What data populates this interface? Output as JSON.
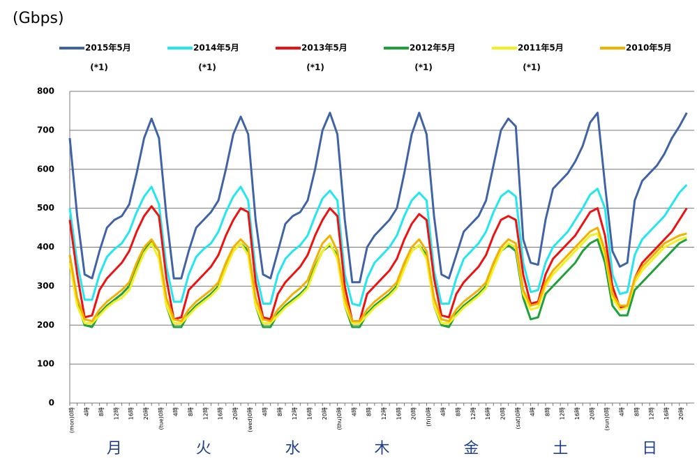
{
  "chart_data": {
    "type": "line",
    "y_label": "(Gbps)",
    "categories": [
      "(mon)0時",
      null,
      "4時",
      null,
      "8時",
      null,
      "12時",
      null,
      "16時",
      null,
      "20時",
      null,
      "(tue)0時",
      null,
      "4時",
      null,
      "8時",
      null,
      "12時",
      null,
      "16時",
      null,
      "20時",
      null,
      "(wed)0時",
      null,
      "4時",
      null,
      "8時",
      null,
      "12時",
      null,
      "16時",
      null,
      "20時",
      null,
      "(thu)0時",
      null,
      "4時",
      null,
      "8時",
      null,
      "12時",
      null,
      "16時",
      null,
      "20時",
      null,
      "(fri)0時",
      null,
      "4時",
      null,
      "8時",
      null,
      "12時",
      null,
      "16時",
      null,
      "20時",
      null,
      "(sat)0時",
      null,
      "4時",
      null,
      "8時",
      null,
      "12時",
      null,
      "16時",
      null,
      "20時",
      null,
      "(sun)0時",
      null,
      "4時",
      null,
      "8時",
      null,
      "12時",
      null,
      "16時",
      null,
      "20時",
      null
    ],
    "day_labels": [
      "月",
      "火",
      "水",
      "木",
      "金",
      "土",
      "日"
    ],
    "ylim": [
      0,
      800
    ],
    "yticks": [
      0,
      100,
      200,
      300,
      400,
      500,
      600,
      700,
      800
    ],
    "grid": true,
    "series": [
      {
        "name": "2015年5月",
        "note": "(*1)",
        "color": "#3f63a6",
        "values": [
          680,
          480,
          330,
          320,
          390,
          450,
          470,
          480,
          510,
          590,
          680,
          730,
          680,
          480,
          320,
          320,
          390,
          450,
          470,
          490,
          520,
          600,
          690,
          735,
          690,
          470,
          330,
          320,
          390,
          460,
          480,
          490,
          520,
          600,
          700,
          745,
          690,
          470,
          310,
          310,
          400,
          430,
          450,
          470,
          500,
          590,
          690,
          745,
          690,
          480,
          330,
          320,
          380,
          440,
          460,
          480,
          520,
          610,
          700,
          730,
          710,
          420,
          360,
          355,
          470,
          550,
          570,
          590,
          620,
          660,
          720,
          745,
          560,
          390,
          350,
          360,
          520,
          570,
          590,
          610,
          640,
          680,
          710,
          745
        ]
      },
      {
        "name": "2014年5月",
        "note": "(*1)",
        "color": "#22e6f0",
        "values": [
          500,
          360,
          265,
          265,
          330,
          375,
          395,
          410,
          440,
          490,
          530,
          555,
          510,
          350,
          260,
          260,
          330,
          375,
          395,
          410,
          440,
          490,
          530,
          555,
          520,
          340,
          255,
          255,
          330,
          370,
          390,
          405,
          430,
          480,
          525,
          545,
          520,
          330,
          255,
          250,
          320,
          360,
          380,
          400,
          430,
          480,
          520,
          540,
          520,
          340,
          255,
          255,
          320,
          370,
          390,
          410,
          440,
          490,
          530,
          545,
          530,
          360,
          285,
          290,
          360,
          400,
          420,
          440,
          470,
          500,
          535,
          550,
          500,
          330,
          280,
          285,
          380,
          420,
          440,
          460,
          480,
          510,
          540,
          560
        ]
      },
      {
        "name": "2013年5月",
        "note": "(*1)",
        "color": "#ee1111",
        "values": [
          470,
          330,
          220,
          225,
          290,
          320,
          340,
          360,
          390,
          440,
          480,
          505,
          480,
          320,
          215,
          220,
          290,
          310,
          330,
          350,
          380,
          430,
          470,
          500,
          490,
          310,
          220,
          215,
          280,
          310,
          330,
          350,
          380,
          430,
          470,
          500,
          480,
          300,
          210,
          210,
          280,
          300,
          320,
          340,
          370,
          420,
          460,
          485,
          470,
          320,
          225,
          220,
          280,
          310,
          330,
          350,
          380,
          430,
          470,
          480,
          470,
          330,
          255,
          260,
          330,
          370,
          390,
          410,
          430,
          460,
          490,
          500,
          430,
          300,
          245,
          250,
          320,
          360,
          380,
          400,
          420,
          440,
          470,
          500
        ]
      },
      {
        "name": "2012年5月",
        "note": "(*1)",
        "color": "#1fa03a",
        "values": [
          380,
          260,
          200,
          195,
          230,
          250,
          265,
          280,
          300,
          350,
          390,
          415,
          390,
          250,
          195,
          195,
          230,
          250,
          265,
          280,
          300,
          350,
          390,
          410,
          390,
          250,
          195,
          195,
          230,
          250,
          265,
          280,
          300,
          350,
          390,
          405,
          380,
          250,
          195,
          195,
          230,
          250,
          265,
          280,
          300,
          350,
          390,
          405,
          380,
          250,
          200,
          195,
          230,
          250,
          265,
          280,
          300,
          350,
          390,
          405,
          390,
          270,
          215,
          220,
          280,
          300,
          320,
          340,
          360,
          390,
          410,
          420,
          360,
          250,
          225,
          225,
          290,
          310,
          330,
          350,
          370,
          390,
          410,
          420
        ]
      },
      {
        "name": "2011年5月",
        "note": "(*1)",
        "color": "#f4f020",
        "values": [
          360,
          250,
          205,
          205,
          225,
          245,
          260,
          270,
          290,
          340,
          385,
          410,
          370,
          250,
          205,
          205,
          225,
          245,
          260,
          275,
          295,
          345,
          390,
          410,
          380,
          250,
          205,
          205,
          225,
          245,
          260,
          275,
          295,
          345,
          390,
          410,
          370,
          250,
          205,
          205,
          225,
          245,
          260,
          275,
          295,
          345,
          390,
          405,
          370,
          250,
          205,
          205,
          225,
          245,
          260,
          275,
          295,
          345,
          390,
          410,
          400,
          280,
          240,
          245,
          300,
          330,
          350,
          370,
          390,
          410,
          430,
          435,
          380,
          270,
          240,
          245,
          310,
          340,
          360,
          380,
          400,
          410,
          420,
          425
        ]
      },
      {
        "name": "2010年5月",
        "color": "#f4b000",
        "values": [
          380,
          270,
          215,
          210,
          240,
          260,
          275,
          290,
          310,
          360,
          400,
          420,
          390,
          270,
          215,
          210,
          240,
          260,
          275,
          290,
          310,
          360,
          400,
          420,
          400,
          270,
          215,
          210,
          240,
          260,
          280,
          295,
          315,
          365,
          410,
          430,
          390,
          270,
          210,
          210,
          240,
          260,
          275,
          290,
          310,
          360,
          400,
          420,
          390,
          270,
          215,
          210,
          240,
          260,
          275,
          290,
          310,
          360,
          400,
          420,
          410,
          290,
          250,
          255,
          310,
          340,
          360,
          380,
          400,
          420,
          440,
          450,
          390,
          280,
          250,
          250,
          320,
          350,
          370,
          390,
          410,
          420,
          430,
          435
        ]
      }
    ]
  }
}
